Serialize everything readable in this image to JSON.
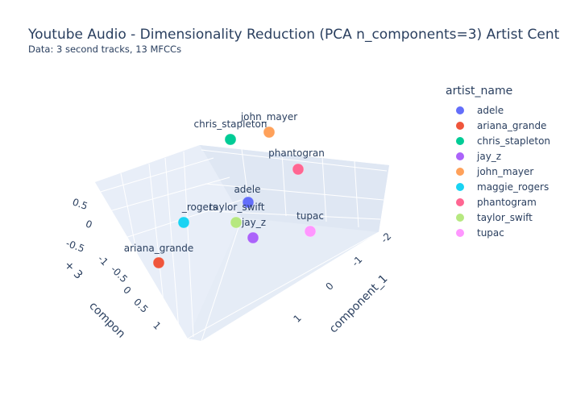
{
  "chart_data": {
    "type": "scatter3d",
    "title": "Youtube Audio - Dimensionality Reduction (PCA n_components=3) Artist Cent",
    "subtitle": "Data: 3 second tracks, 13 MFCCs",
    "legend_title": "artist_name",
    "legend_position": "right",
    "axes": {
      "x": {
        "label": "component_1",
        "ticks": [
          "-2",
          "-1",
          "0",
          "1"
        ]
      },
      "y": {
        "label": "compon",
        "ticks": [
          "-1",
          "-0.5",
          "0",
          "0.5",
          "1"
        ]
      },
      "z": {
        "label": "+ 3",
        "ticks": [
          "0.5",
          "0",
          "-0.5"
        ]
      }
    },
    "points": [
      {
        "name": "adele",
        "label": "adele",
        "color": "#636efa"
      },
      {
        "name": "ariana_grande",
        "label": "ariana_grande",
        "color": "#ef553b"
      },
      {
        "name": "chris_stapleton",
        "label": "chris_stapleton",
        "color": "#00cc96"
      },
      {
        "name": "jay_z",
        "label": "jay_z",
        "color": "#ab63fa"
      },
      {
        "name": "john_mayer",
        "label": "john_mayer",
        "color": "#ffa15a"
      },
      {
        "name": "maggie_rogers",
        "label": "_rogers",
        "color": "#19d3f3"
      },
      {
        "name": "phantogram",
        "label": "phantogran",
        "color": "#ff6692"
      },
      {
        "name": "taylor_swift",
        "label": "taylor_swift",
        "color": "#b6e880"
      },
      {
        "name": "tupac",
        "label": "tupac",
        "color": "#ff97ff"
      }
    ]
  }
}
